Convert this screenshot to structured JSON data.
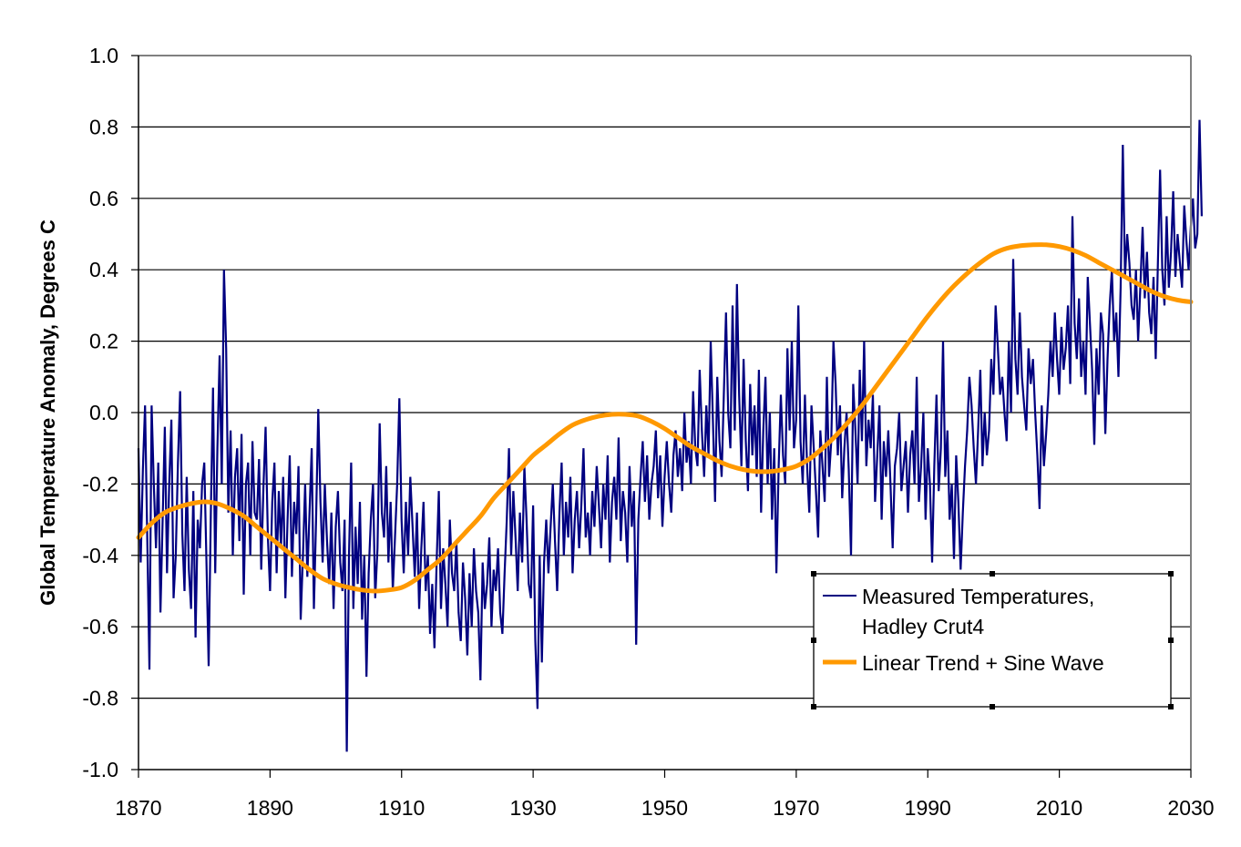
{
  "chart_data": {
    "type": "line",
    "title": "",
    "xlabel": "",
    "ylabel": "Global Temperature Anomaly, Degrees C",
    "xlim": [
      1870,
      2030
    ],
    "ylim": [
      -1.0,
      1.0
    ],
    "x_ticks": [
      "1870",
      "1890",
      "1910",
      "1930",
      "1950",
      "1970",
      "1990",
      "2010",
      "2030"
    ],
    "y_ticks": [
      "1.0",
      "0.8",
      "0.6",
      "0.4",
      "0.2",
      "0.0",
      "-0.2",
      "-0.4",
      "-0.6",
      "-0.8",
      "-1.0"
    ],
    "grid": "horizontal",
    "legend_position": "lower-right",
    "series": [
      {
        "name": "Measured Temperatures, Hadley Crut4",
        "legend_lines": [
          "Measured Temperatures,",
          "Hadley Crut4"
        ],
        "color": "#000080",
        "x_start": 1870,
        "x_step": 0.3333,
        "values": [
          -0.1,
          -0.42,
          -0.16,
          0.02,
          -0.35,
          -0.72,
          0.02,
          -0.2,
          -0.38,
          -0.14,
          -0.56,
          -0.3,
          -0.04,
          -0.45,
          -0.2,
          -0.02,
          -0.52,
          -0.4,
          -0.14,
          0.06,
          -0.34,
          -0.5,
          -0.18,
          -0.44,
          -0.55,
          -0.22,
          -0.63,
          -0.3,
          -0.38,
          -0.2,
          -0.14,
          -0.42,
          -0.71,
          -0.28,
          0.07,
          -0.45,
          -0.1,
          0.16,
          -0.2,
          0.4,
          0.18,
          -0.28,
          -0.05,
          -0.4,
          -0.18,
          -0.1,
          -0.36,
          -0.06,
          -0.51,
          -0.2,
          -0.14,
          -0.4,
          -0.08,
          -0.28,
          -0.3,
          -0.13,
          -0.44,
          -0.21,
          -0.04,
          -0.35,
          -0.5,
          -0.25,
          -0.14,
          -0.45,
          -0.22,
          -0.38,
          -0.18,
          -0.52,
          -0.3,
          -0.12,
          -0.46,
          -0.25,
          -0.34,
          -0.15,
          -0.58,
          -0.4,
          -0.2,
          -0.46,
          -0.28,
          -0.1,
          -0.55,
          -0.3,
          0.01,
          -0.25,
          -0.42,
          -0.2,
          -0.36,
          -0.48,
          -0.28,
          -0.55,
          -0.32,
          -0.22,
          -0.42,
          -0.5,
          -0.3,
          -0.95,
          -0.4,
          -0.14,
          -0.55,
          -0.32,
          -0.48,
          -0.25,
          -0.58,
          -0.4,
          -0.74,
          -0.45,
          -0.3,
          -0.2,
          -0.52,
          -0.38,
          -0.03,
          -0.28,
          -0.35,
          -0.15,
          -0.42,
          -0.25,
          -0.5,
          -0.35,
          -0.2,
          0.04,
          -0.3,
          -0.45,
          -0.25,
          -0.4,
          -0.18,
          -0.32,
          -0.46,
          -0.28,
          -0.55,
          -0.38,
          -0.25,
          -0.5,
          -0.4,
          -0.62,
          -0.48,
          -0.66,
          -0.42,
          -0.22,
          -0.55,
          -0.38,
          -0.48,
          -0.6,
          -0.3,
          -0.45,
          -0.5,
          -0.36,
          -0.56,
          -0.64,
          -0.42,
          -0.52,
          -0.68,
          -0.45,
          -0.6,
          -0.38,
          -0.5,
          -0.56,
          -0.75,
          -0.42,
          -0.55,
          -0.48,
          -0.35,
          -0.6,
          -0.44,
          -0.5,
          -0.38,
          -0.56,
          -0.62,
          -0.45,
          -0.3,
          -0.1,
          -0.4,
          -0.22,
          -0.35,
          -0.5,
          -0.28,
          -0.42,
          -0.15,
          -0.3,
          -0.48,
          -0.52,
          -0.26,
          -0.64,
          -0.83,
          -0.4,
          -0.7,
          -0.42,
          -0.3,
          -0.45,
          -0.32,
          -0.2,
          -0.36,
          -0.5,
          -0.28,
          -0.14,
          -0.4,
          -0.25,
          -0.35,
          -0.18,
          -0.45,
          -0.3,
          -0.22,
          -0.38,
          -0.26,
          -0.1,
          -0.35,
          -0.28,
          -0.4,
          -0.22,
          -0.32,
          -0.15,
          -0.26,
          -0.38,
          -0.2,
          -0.3,
          -0.12,
          -0.42,
          -0.25,
          -0.18,
          -0.3,
          -0.07,
          -0.36,
          -0.22,
          -0.28,
          -0.42,
          -0.15,
          -0.32,
          -0.22,
          -0.65,
          -0.3,
          -0.18,
          -0.08,
          -0.25,
          -0.12,
          -0.3,
          -0.2,
          -0.15,
          -0.05,
          -0.24,
          -0.12,
          -0.32,
          -0.18,
          -0.08,
          -0.2,
          -0.28,
          -0.12,
          -0.05,
          -0.18,
          -0.1,
          -0.22,
          0.0,
          -0.14,
          -0.08,
          -0.2,
          0.06,
          -0.1,
          -0.15,
          0.12,
          -0.05,
          -0.18,
          0.02,
          -0.12,
          0.2,
          -0.02,
          -0.25,
          0.1,
          -0.08,
          -0.18,
          0.05,
          0.28,
          0.0,
          -0.1,
          0.3,
          -0.05,
          0.36,
          0.05,
          -0.15,
          0.15,
          -0.08,
          -0.22,
          0.08,
          -0.12,
          0.02,
          -0.18,
          0.12,
          -0.28,
          -0.05,
          0.1,
          -0.2,
          0.0,
          -0.3,
          -0.1,
          -0.45,
          -0.15,
          0.05,
          -0.12,
          -0.2,
          0.18,
          -0.05,
          0.2,
          -0.1,
          -0.02,
          0.3,
          -0.08,
          -0.2,
          0.05,
          -0.15,
          -0.28,
          0.02,
          -0.1,
          -0.22,
          -0.35,
          -0.05,
          -0.15,
          -0.25,
          0.1,
          -0.18,
          -0.08,
          0.2,
          0.08,
          -0.12,
          0.02,
          -0.24,
          -0.1,
          0.0,
          -0.16,
          -0.4,
          0.08,
          -0.05,
          -0.2,
          0.12,
          -0.08,
          0.2,
          -0.15,
          -0.02,
          -0.1,
          0.05,
          -0.25,
          -0.12,
          0.02,
          -0.3,
          -0.08,
          -0.18,
          -0.05,
          -0.2,
          -0.38,
          -0.15,
          -0.1,
          0.0,
          -0.22,
          -0.15,
          -0.08,
          -0.28,
          -0.12,
          -0.05,
          -0.2,
          0.1,
          -0.25,
          -0.15,
          0.0,
          -0.3,
          -0.1,
          -0.2,
          -0.42,
          -0.15,
          0.05,
          -0.22,
          -0.1,
          0.2,
          -0.18,
          -0.05,
          -0.3,
          -0.2,
          -0.41,
          -0.12,
          -0.25,
          -0.44,
          -0.28,
          -0.15,
          -0.05,
          0.1,
          0.02,
          -0.1,
          -0.2,
          -0.05,
          0.12,
          -0.15,
          0.0,
          -0.12,
          -0.05,
          0.15,
          0.05,
          0.3,
          0.18,
          0.05,
          0.1,
          0.0,
          -0.08,
          0.2,
          0.0,
          0.43,
          0.15,
          0.05,
          0.28,
          0.1,
          0.02,
          -0.05,
          0.18,
          0.08,
          0.15,
          0.0,
          -0.12,
          -0.27,
          0.02,
          -0.15,
          -0.06,
          0.05,
          0.2,
          0.1,
          0.28,
          0.15,
          0.05,
          0.24,
          0.12,
          0.18,
          0.3,
          0.08,
          0.55,
          0.25,
          0.15,
          0.32,
          0.1,
          0.2,
          0.05,
          0.38,
          0.25,
          0.12,
          -0.09,
          0.18,
          0.05,
          0.28,
          0.22,
          -0.06,
          0.15,
          0.3,
          0.4,
          0.2,
          0.28,
          0.1,
          0.35,
          0.75,
          0.38,
          0.5,
          0.42,
          0.3,
          0.26,
          0.4,
          0.2,
          0.35,
          0.52,
          0.32,
          0.45,
          0.28,
          0.22,
          0.38,
          0.15,
          0.42,
          0.68,
          0.4,
          0.3,
          0.55,
          0.35,
          0.45,
          0.62,
          0.38,
          0.5,
          0.42,
          0.35,
          0.58,
          0.48,
          0.4,
          0.52,
          0.6,
          0.46,
          0.5,
          0.82,
          0.55
        ]
      },
      {
        "name": "Linear Trend + Sine Wave",
        "legend_lines": [
          "Linear Trend + Sine Wave"
        ],
        "color": "#FF9900",
        "x": [
          1870,
          1872,
          1874,
          1876,
          1878,
          1880,
          1882,
          1884,
          1886,
          1888,
          1890,
          1892,
          1894,
          1896,
          1898,
          1900,
          1902,
          1904,
          1906,
          1908,
          1910,
          1912,
          1914,
          1916,
          1918,
          1920,
          1922,
          1924,
          1926,
          1928,
          1930,
          1932,
          1934,
          1936,
          1938,
          1940,
          1942,
          1944,
          1946,
          1948,
          1950,
          1952,
          1954,
          1956,
          1958,
          1960,
          1962,
          1964,
          1966,
          1968,
          1970,
          1972,
          1974,
          1976,
          1978,
          1980,
          1982,
          1984,
          1986,
          1988,
          1990,
          1992,
          1994,
          1996,
          1998,
          2000,
          2002,
          2004,
          2006,
          2008,
          2010,
          2012,
          2014,
          2016,
          2018,
          2020,
          2022,
          2024,
          2026,
          2028,
          2030
        ],
        "values": [
          -0.35,
          -0.31,
          -0.28,
          -0.265,
          -0.255,
          -0.25,
          -0.255,
          -0.27,
          -0.29,
          -0.32,
          -0.35,
          -0.38,
          -0.41,
          -0.44,
          -0.465,
          -0.48,
          -0.49,
          -0.497,
          -0.5,
          -0.497,
          -0.49,
          -0.47,
          -0.44,
          -0.41,
          -0.37,
          -0.33,
          -0.29,
          -0.24,
          -0.2,
          -0.16,
          -0.12,
          -0.09,
          -0.06,
          -0.035,
          -0.02,
          -0.01,
          -0.005,
          -0.005,
          -0.01,
          -0.025,
          -0.045,
          -0.07,
          -0.095,
          -0.115,
          -0.135,
          -0.15,
          -0.16,
          -0.165,
          -0.165,
          -0.16,
          -0.15,
          -0.13,
          -0.1,
          -0.065,
          -0.025,
          0.02,
          0.07,
          0.12,
          0.17,
          0.22,
          0.27,
          0.315,
          0.355,
          0.39,
          0.42,
          0.445,
          0.46,
          0.467,
          0.47,
          0.47,
          0.465,
          0.455,
          0.44,
          0.42,
          0.4,
          0.38,
          0.36,
          0.34,
          0.325,
          0.315,
          0.31
        ]
      }
    ]
  }
}
